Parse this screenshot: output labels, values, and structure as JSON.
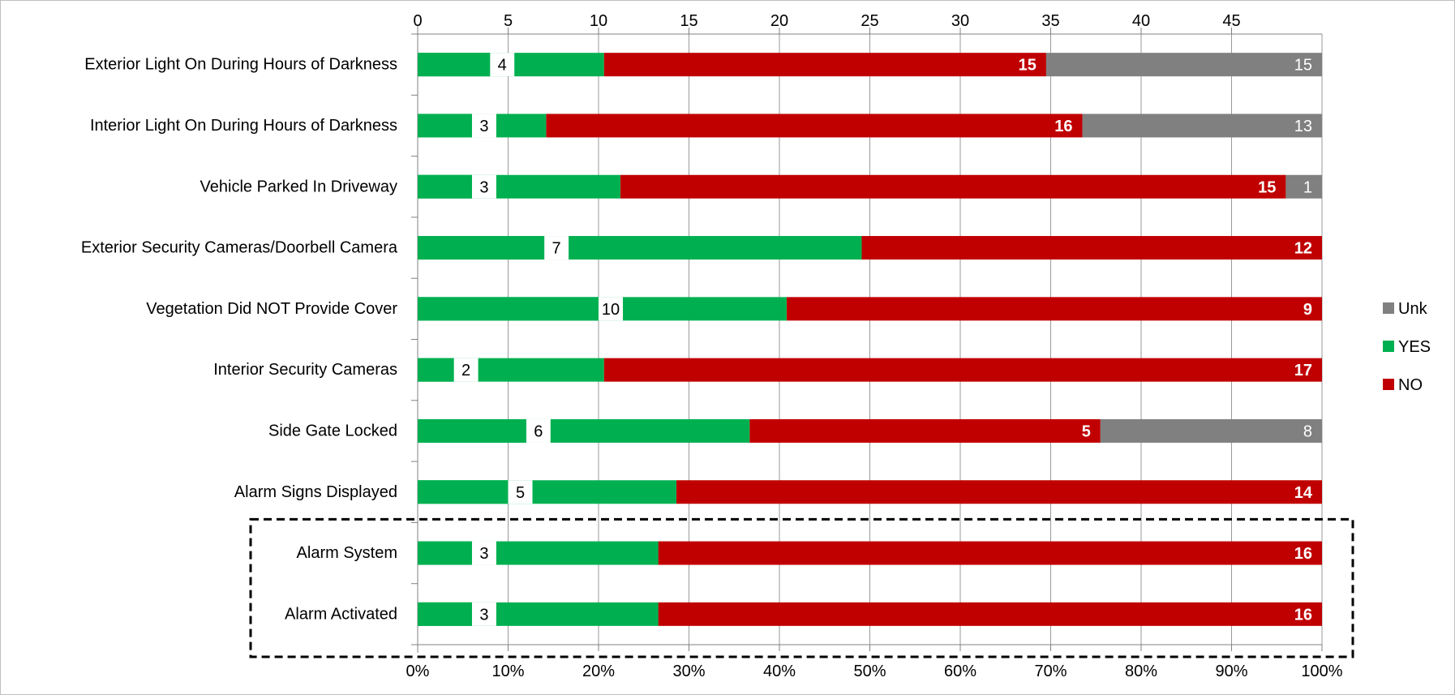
{
  "chart_data": {
    "type": "bar",
    "orientation": "horizontal",
    "stacked": true,
    "categories": [
      "Exterior Light On During Hours of Darkness",
      "Interior Light On During Hours of Darkness",
      "Vehicle Parked In Driveway",
      "Exterior Security Cameras/Doorbell Camera",
      "Vegetation Did NOT Provide Cover",
      "Interior Security Cameras",
      "Side Gate Locked",
      "Alarm Signs Displayed",
      "Alarm System",
      "Alarm Activated"
    ],
    "count_bar": {
      "values": [
        4,
        3,
        3,
        7,
        10,
        2,
        6,
        5,
        3,
        3
      ],
      "labels": [
        "4",
        "3",
        "3",
        "7",
        "10",
        "2",
        "6",
        "5",
        "3",
        "3"
      ],
      "color": "#00b050"
    },
    "series": [
      {
        "name": "NO",
        "color": "#c00000",
        "percent_start": [
          20.6,
          14.2,
          22.4,
          49.1,
          40.8,
          20.6,
          36.7,
          28.6,
          26.6,
          26.6
        ],
        "percent_end": [
          69.5,
          73.5,
          96.0,
          100,
          100,
          100,
          75.5,
          100,
          100,
          100
        ],
        "labels": [
          "15",
          "16",
          "15",
          "12",
          "9",
          "17",
          "5",
          "14",
          "16",
          "16"
        ]
      },
      {
        "name": "Unk",
        "color": "#808080",
        "percent_start": [
          69.5,
          73.5,
          96.0,
          null,
          null,
          null,
          75.5,
          null,
          null,
          null
        ],
        "percent_end": [
          100,
          100,
          100,
          null,
          null,
          null,
          100,
          null,
          null,
          null
        ],
        "labels": [
          "15",
          "13",
          "1",
          "",
          "",
          "",
          "8",
          "",
          "",
          ""
        ]
      },
      {
        "name": "YES",
        "color": "#00b050",
        "percent_start": [
          0,
          0,
          0,
          0,
          0,
          0,
          0,
          0,
          0,
          0
        ],
        "percent_end": [
          20.6,
          14.2,
          22.4,
          49.1,
          40.8,
          20.6,
          36.7,
          28.6,
          26.6,
          26.6
        ],
        "labels": [
          "",
          "",
          "",
          "",
          "",
          "",
          "",
          "",
          "",
          ""
        ]
      }
    ],
    "top_axis": {
      "ticks": [
        0,
        5,
        10,
        15,
        20,
        25,
        30,
        35,
        40,
        45
      ],
      "max": 50
    },
    "bottom_axis": {
      "ticks": [
        "0%",
        "10%",
        "20%",
        "30%",
        "40%",
        "50%",
        "60%",
        "70%",
        "80%",
        "90%",
        "100%"
      ],
      "max": 100
    },
    "legend": {
      "placement": "right",
      "items": [
        {
          "name": "Unk",
          "color": "#808080"
        },
        {
          "name": "YES",
          "color": "#00b050"
        },
        {
          "name": "NO",
          "color": "#c00000"
        }
      ]
    },
    "highlight_box": {
      "categories": [
        "Alarm System",
        "Alarm Activated"
      ],
      "style": "dashed"
    },
    "grid": true,
    "title": "",
    "xlabel": "",
    "ylabel": ""
  }
}
